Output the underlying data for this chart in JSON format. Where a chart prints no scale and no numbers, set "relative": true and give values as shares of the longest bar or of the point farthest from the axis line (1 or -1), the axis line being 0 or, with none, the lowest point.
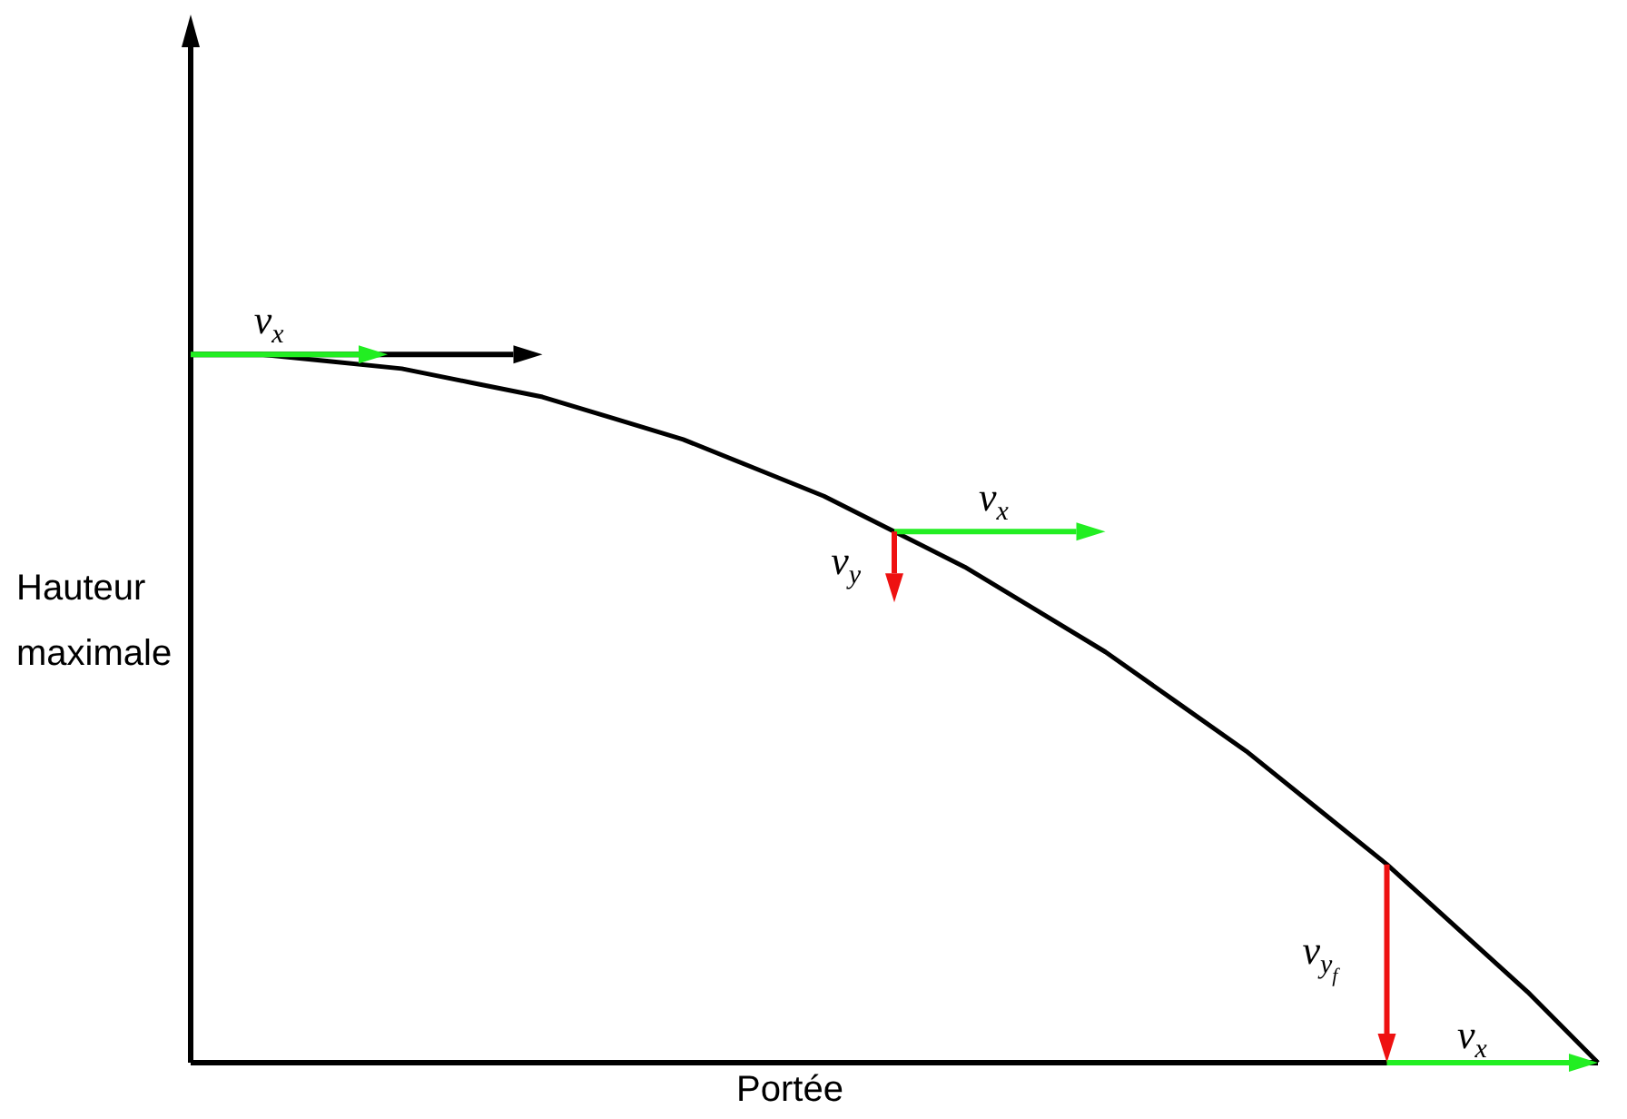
{
  "chart_data": {
    "type": "line",
    "relative": true,
    "xlabel": "Portée",
    "ylabel": "Hauteur maximale",
    "categories": [
      null,
      null,
      null,
      null,
      null,
      null,
      null,
      null,
      null,
      null,
      null,
      null,
      null,
      null,
      null,
      null,
      null,
      null,
      null,
      null,
      null
    ],
    "series": [
      {
        "color": "#000000",
        "values": [
          1,
          1,
          0.99,
          0.98,
          0.96,
          0.94,
          0.91,
          0.88,
          0.84,
          0.8,
          0.75,
          0.7,
          0.64,
          0.58,
          0.51,
          0.44,
          0.36,
          0.28,
          0.19,
          0.1,
          0
        ]
      }
    ],
    "annotations": [
      "v$_{x}$",
      "v$_{x}$",
      "v$_{y}$",
      "v$_{y}$$_{f}$",
      "v$_{x}$"
    ],
    "marker": "none",
    "line_style": "solid"
  }
}
